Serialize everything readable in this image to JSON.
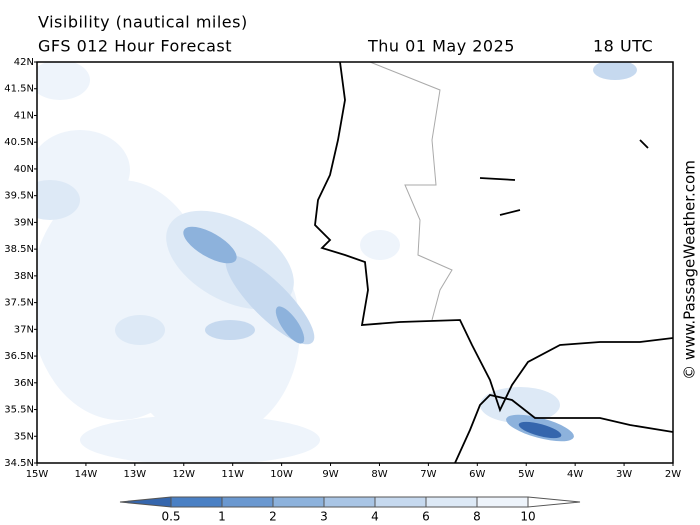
{
  "header": {
    "title": "Visibility (nautical miles)",
    "model": "GFS 012 Hour Forecast",
    "date": "Thu 01 May 2025",
    "time": "18 UTC"
  },
  "map": {
    "lat_labels": [
      "42N",
      "41.5N",
      "41N",
      "40.5N",
      "40N",
      "39.5N",
      "39N",
      "38.5N",
      "38N",
      "37.5N",
      "37N",
      "36.5N",
      "36N",
      "35.5N",
      "35N",
      "34.5N"
    ],
    "lon_labels": [
      "15W",
      "14W",
      "13W",
      "12W",
      "11W",
      "10W",
      "9W",
      "8W",
      "7W",
      "6W",
      "5W",
      "4W",
      "3W",
      "2W"
    ]
  },
  "legend": {
    "levels": [
      "0.5",
      "1",
      "2",
      "3",
      "4",
      "6",
      "8",
      "10"
    ],
    "colors": [
      "#3566ad",
      "#4a80c4",
      "#6a98d0",
      "#8db2dc",
      "#a9c5e5",
      "#c6d9ef",
      "#dde9f6",
      "#eef4fb",
      "#ffffff"
    ]
  },
  "watermark": "© www.PassageWeather.com"
}
